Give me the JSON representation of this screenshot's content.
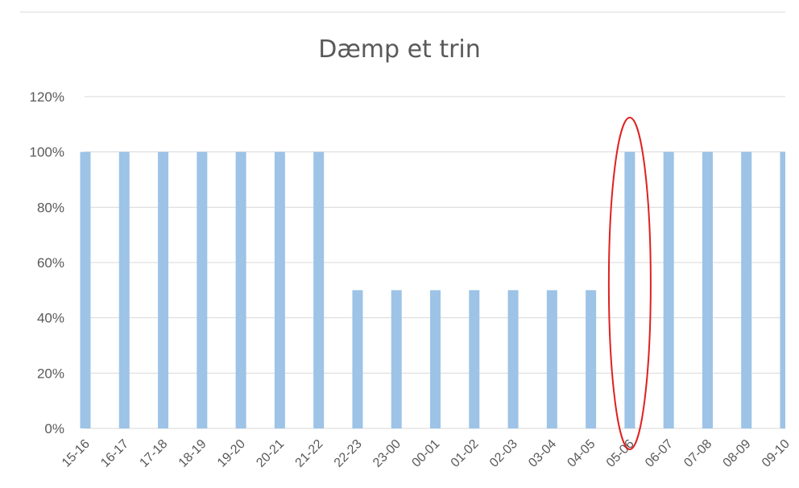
{
  "chart_data": {
    "type": "bar",
    "title": "Dæmp et trin",
    "xlabel": "",
    "ylabel": "",
    "categories": [
      "15-16",
      "16-17",
      "17-18",
      "18-19",
      "19-20",
      "20-21",
      "21-22",
      "22-23",
      "23-00",
      "00-01",
      "01-02",
      "02-03",
      "03-04",
      "04-05",
      "05-06",
      "06-07",
      "07-08",
      "08-09",
      "09-10"
    ],
    "series": [
      {
        "values": [
          100,
          100,
          100,
          100,
          100,
          100,
          100,
          50,
          50,
          50,
          50,
          50,
          50,
          50,
          100,
          100,
          100,
          100,
          100
        ]
      }
    ],
    "ylim": [
      0,
      120
    ],
    "y_ticks": [
      0,
      20,
      40,
      60,
      80,
      100,
      120
    ],
    "y_tick_labels": [
      "0%",
      "20%",
      "40%",
      "60%",
      "80%",
      "100%",
      "120%"
    ],
    "grid": true,
    "legend": "none",
    "highlight": {
      "category": "05-06",
      "shape": "ellipse"
    },
    "colors": {
      "bar": "#9dc3e6",
      "grid": "#d9d9d9",
      "axis_text": "#595959",
      "highlight": "#e02020"
    }
  }
}
